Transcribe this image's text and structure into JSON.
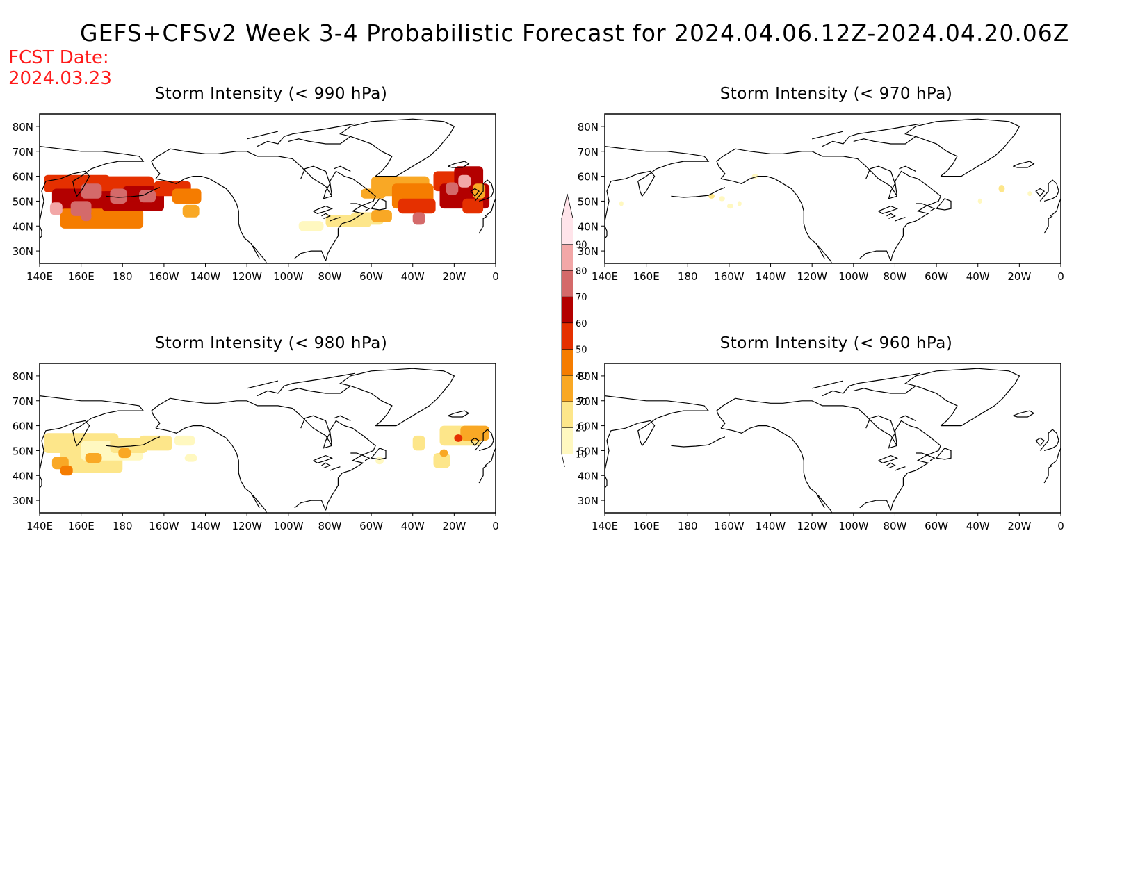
{
  "title": "GEFS+CFSv2 Week 3-4 Probabilistic Forecast for 2024.04.06.12Z-2024.04.20.06Z",
  "fcst_date": {
    "line1": "FCST Date:",
    "line2": "2024.03.23"
  },
  "x_ticks": [
    "140E",
    "160E",
    "180",
    "160W",
    "140W",
    "120W",
    "100W",
    "80W",
    "60W",
    "40W",
    "20W",
    "0"
  ],
  "y_ticks": [
    "80N",
    "70N",
    "60N",
    "50N",
    "40N",
    "30N"
  ],
  "colorbar": {
    "levels": [
      "10",
      "20",
      "30",
      "40",
      "50",
      "60",
      "70",
      "80",
      "90"
    ],
    "colors": [
      "#fff8c0",
      "#fde68a",
      "#f9a825",
      "#f57c00",
      "#e53000",
      "#b30000",
      "#d46a6a",
      "#f2a7a7",
      "#ffe4ea"
    ]
  },
  "panels": [
    {
      "title": "Storm Intensity (< 990 hPa)",
      "level": "990 hPa"
    },
    {
      "title": "Storm Intensity (< 970 hPa)",
      "level": "970 hPa"
    },
    {
      "title": "Storm Intensity (< 980 hPa)",
      "level": "980 hPa"
    },
    {
      "title": "Storm Intensity (< 960 hPa)",
      "level": "960 hPa"
    }
  ]
}
